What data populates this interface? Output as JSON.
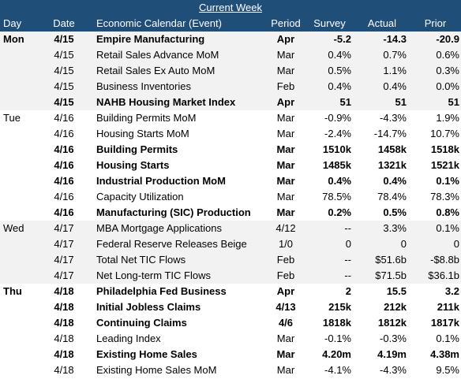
{
  "banner": "Current Week",
  "headers": {
    "day": "Day",
    "date": "Date",
    "event": "Economic Calendar (Event)",
    "period": "Period",
    "survey": "Survey",
    "actual": "Actual",
    "prior": "Prior"
  },
  "rows": [
    {
      "day": "Mon",
      "date": "4/15",
      "event": "Empire Manufacturing",
      "period": "Apr",
      "survey": "-5.2",
      "actual": "-14.3",
      "prior": "-20.9",
      "bold": true,
      "shade": true
    },
    {
      "day": "",
      "date": "4/15",
      "event": "Retail Sales Advance MoM",
      "period": "Mar",
      "survey": "0.4%",
      "actual": "0.7%",
      "prior": "0.6%",
      "bold": false,
      "shade": true
    },
    {
      "day": "",
      "date": "4/15",
      "event": "Retail Sales Ex Auto MoM",
      "period": "Mar",
      "survey": "0.5%",
      "actual": "1.1%",
      "prior": "0.3%",
      "bold": false,
      "shade": true
    },
    {
      "day": "",
      "date": "4/15",
      "event": "Business Inventories",
      "period": "Feb",
      "survey": "0.4%",
      "actual": "0.4%",
      "prior": "0.0%",
      "bold": false,
      "shade": true
    },
    {
      "day": "",
      "date": "4/15",
      "event": "NAHB Housing Market Index",
      "period": "Apr",
      "survey": "51",
      "actual": "51",
      "prior": "51",
      "bold": true,
      "shade": true
    },
    {
      "day": "Tue",
      "date": "4/16",
      "event": "Building Permits MoM",
      "period": "Mar",
      "survey": "-0.9%",
      "actual": "-4.3%",
      "prior": "1.9%",
      "bold": false,
      "shade": false
    },
    {
      "day": "",
      "date": "4/16",
      "event": "Housing Starts MoM",
      "period": "Mar",
      "survey": "-2.4%",
      "actual": "-14.7%",
      "prior": "10.7%",
      "bold": false,
      "shade": false
    },
    {
      "day": "",
      "date": "4/16",
      "event": "Building Permits",
      "period": "Mar",
      "survey": "1510k",
      "actual": "1458k",
      "prior": "1518k",
      "bold": true,
      "shade": false
    },
    {
      "day": "",
      "date": "4/16",
      "event": "Housing Starts",
      "period": "Mar",
      "survey": "1485k",
      "actual": "1321k",
      "prior": "1521k",
      "bold": true,
      "shade": false
    },
    {
      "day": "",
      "date": "4/16",
      "event": "Industrial Production MoM",
      "period": "Mar",
      "survey": "0.4%",
      "actual": "0.4%",
      "prior": "0.1%",
      "bold": true,
      "shade": false
    },
    {
      "day": "",
      "date": "4/16",
      "event": "Capacity Utilization",
      "period": "Mar",
      "survey": "78.5%",
      "actual": "78.4%",
      "prior": "78.3%",
      "bold": false,
      "shade": false
    },
    {
      "day": "",
      "date": "4/16",
      "event": "Manufacturing (SIC) Production",
      "period": "Mar",
      "survey": "0.2%",
      "actual": "0.5%",
      "prior": "0.8%",
      "bold": true,
      "shade": false
    },
    {
      "day": "Wed",
      "date": "4/17",
      "event": "MBA Mortgage Applications",
      "period": "4/12",
      "survey": "--",
      "actual": "3.3%",
      "prior": "0.1%",
      "bold": false,
      "shade": true
    },
    {
      "day": "",
      "date": "4/17",
      "event": "Federal Reserve Releases Beige",
      "period": "1/0",
      "survey": "0",
      "actual": "0",
      "prior": "0",
      "bold": false,
      "shade": true
    },
    {
      "day": "",
      "date": "4/17",
      "event": "Total Net TIC Flows",
      "period": "Feb",
      "survey": "--",
      "actual": "$51.6b",
      "prior": "-$8.8b",
      "bold": false,
      "shade": true
    },
    {
      "day": "",
      "date": "4/17",
      "event": "Net Long-term TIC Flows",
      "period": "Feb",
      "survey": "--",
      "actual": "$71.5b",
      "prior": "$36.1b",
      "bold": false,
      "shade": true
    },
    {
      "day": "Thu",
      "date": "4/18",
      "event": "Philadelphia Fed Business",
      "period": "Apr",
      "survey": "2",
      "actual": "15.5",
      "prior": "3.2",
      "bold": true,
      "shade": false
    },
    {
      "day": "",
      "date": "4/18",
      "event": "Initial Jobless Claims",
      "period": "4/13",
      "survey": "215k",
      "actual": "212k",
      "prior": "211k",
      "bold": true,
      "shade": false
    },
    {
      "day": "",
      "date": "4/18",
      "event": "Continuing Claims",
      "period": "4/6",
      "survey": "1818k",
      "actual": "1812k",
      "prior": "1817k",
      "bold": true,
      "shade": false
    },
    {
      "day": "",
      "date": "4/18",
      "event": "Leading Index",
      "period": "Mar",
      "survey": "-0.1%",
      "actual": "-0.3%",
      "prior": "0.1%",
      "bold": false,
      "shade": false
    },
    {
      "day": "",
      "date": "4/18",
      "event": "Existing Home Sales",
      "period": "Mar",
      "survey": "4.20m",
      "actual": "4.19m",
      "prior": "4.38m",
      "bold": true,
      "shade": false
    },
    {
      "day": "",
      "date": "4/18",
      "event": "Existing Home Sales MoM",
      "period": "Mar",
      "survey": "-4.1%",
      "actual": "-4.3%",
      "prior": "9.5%",
      "bold": false,
      "shade": false
    }
  ]
}
